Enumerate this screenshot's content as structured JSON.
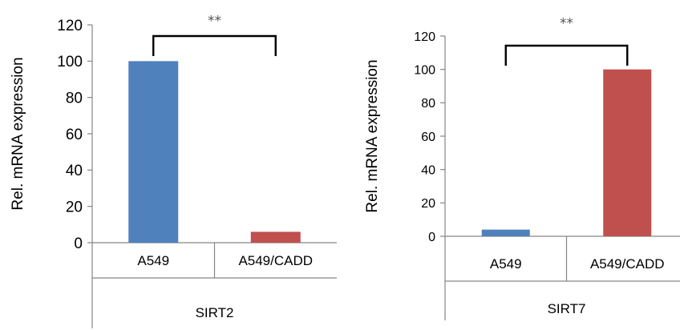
{
  "chart_data": [
    {
      "type": "bar",
      "ylabel": "Rel. mRNA expression",
      "ylim": [
        0,
        120
      ],
      "yticks": [
        0,
        20,
        40,
        60,
        80,
        100,
        120
      ],
      "categories": [
        "A549",
        "A549/CADD"
      ],
      "group_label": "SIRT2",
      "values": [
        100,
        6
      ],
      "bar_colors": [
        "#4f81bd",
        "#c0504d"
      ],
      "significance": {
        "label": "**",
        "between": [
          0,
          1
        ]
      },
      "grid": false,
      "legend": "none"
    },
    {
      "type": "bar",
      "ylabel": "Rel. mRNA expression",
      "ylim": [
        0,
        120
      ],
      "yticks": [
        0,
        20,
        40,
        60,
        80,
        100,
        120
      ],
      "categories": [
        "A549",
        "A549/CADD"
      ],
      "group_label": "SIRT7",
      "values": [
        4,
        100
      ],
      "bar_colors": [
        "#4f81bd",
        "#c0504d"
      ],
      "significance": {
        "label": "**",
        "between": [
          0,
          1
        ]
      },
      "grid": false,
      "legend": "none"
    }
  ]
}
